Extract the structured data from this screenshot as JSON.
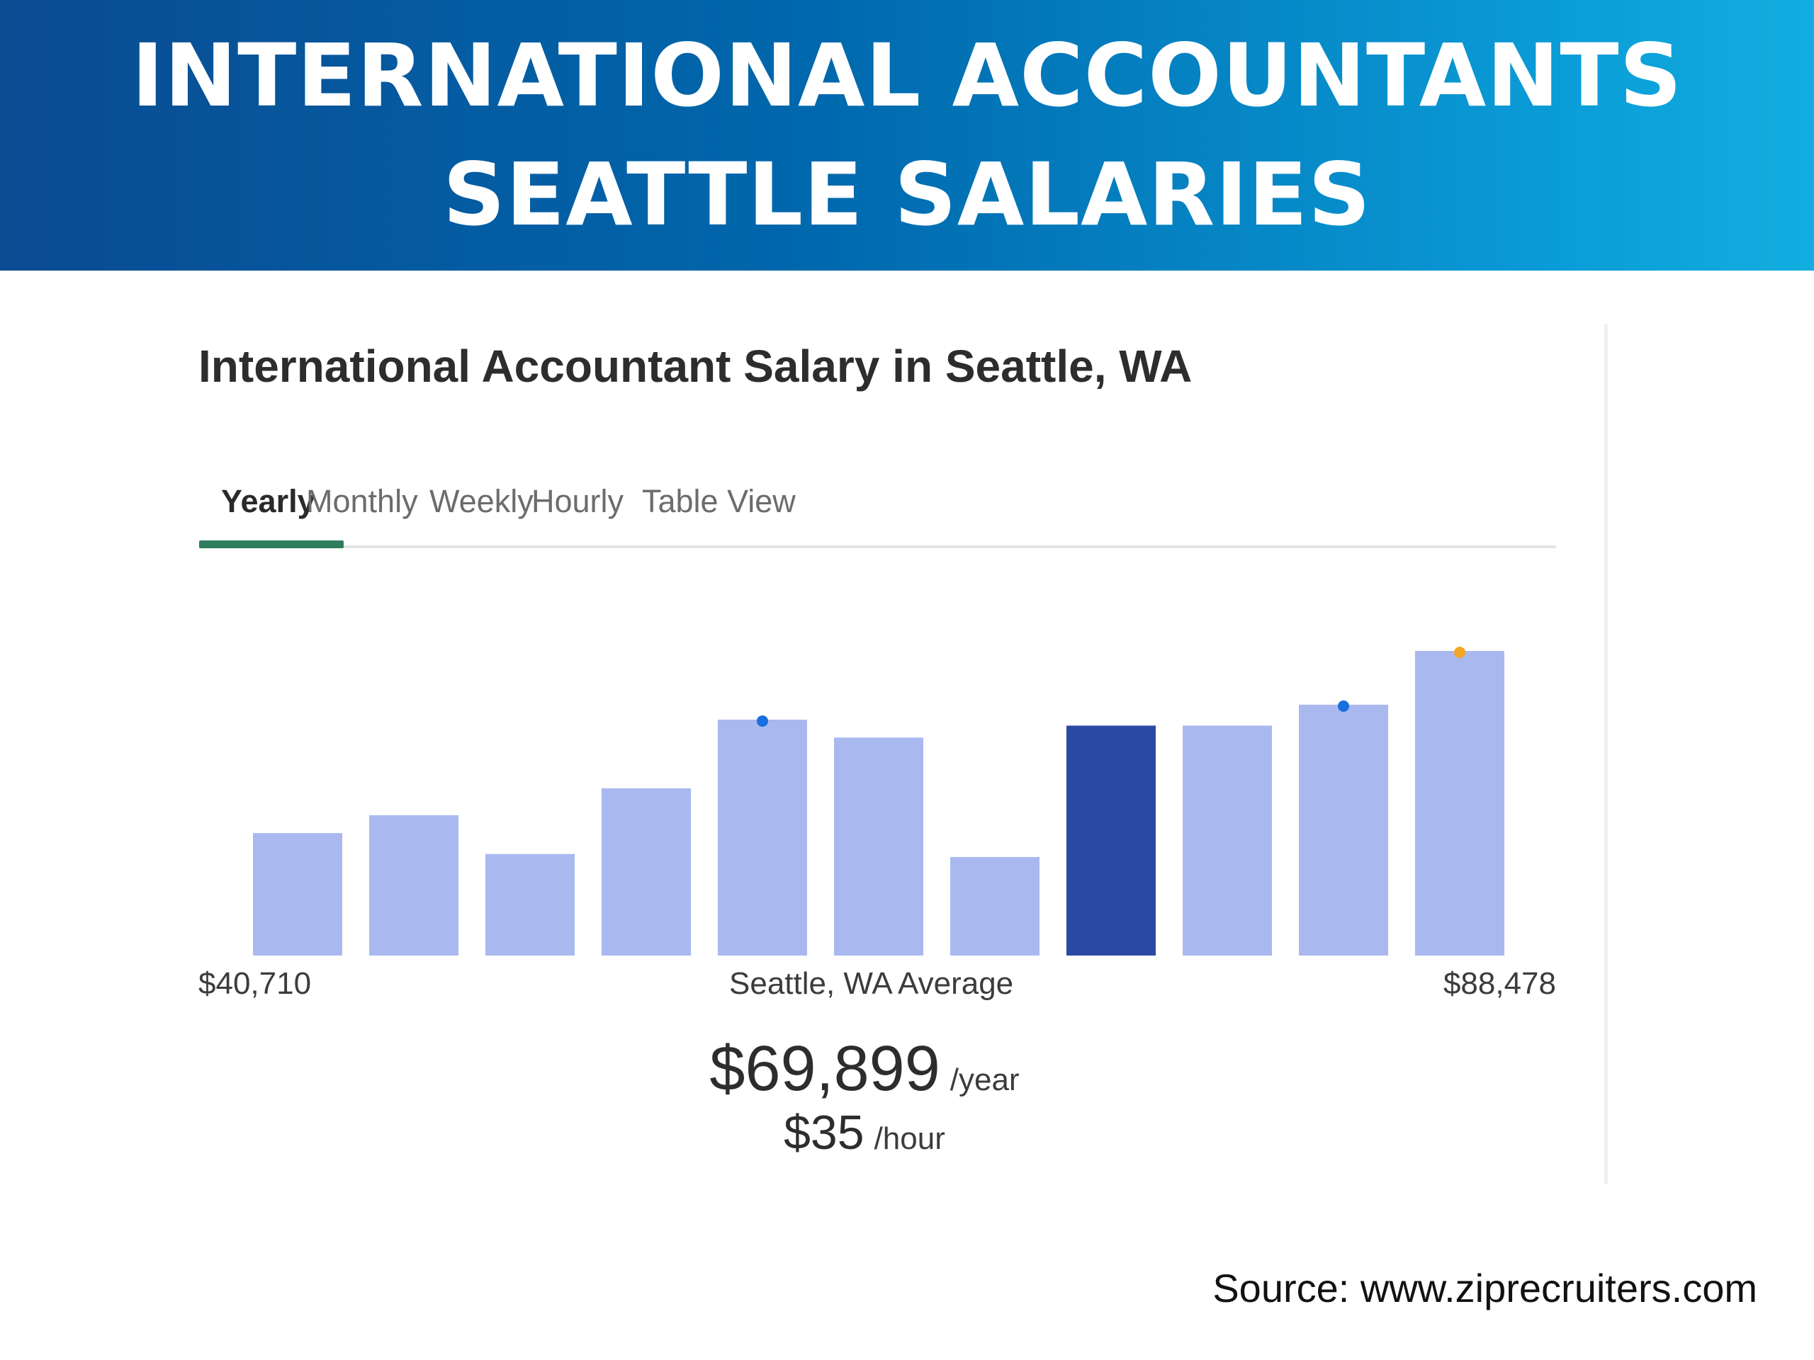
{
  "banner": {
    "line1": "INTERNATIONAL ACCOUNTANTS",
    "line2": "SEATTLE SALARIES"
  },
  "card": {
    "title": "International Accountant Salary in Seattle, WA",
    "tabs": [
      {
        "label": "Yearly",
        "active": true
      },
      {
        "label": "Monthly",
        "active": false
      },
      {
        "label": "Weekly",
        "active": false
      },
      {
        "label": "Hourly",
        "active": false
      },
      {
        "label": "Table View",
        "active": false
      }
    ],
    "axis": {
      "min_label": "$40,710",
      "center_label": "Seattle, WA Average",
      "max_label": "$88,478"
    },
    "average": {
      "yearly": "$69,899",
      "yearly_unit": "/year",
      "hourly": "$35",
      "hourly_unit": "/hour"
    }
  },
  "chart_data": {
    "type": "bar",
    "values": [
      41,
      47,
      34,
      56,
      79,
      73,
      33,
      77,
      77,
      84,
      102
    ],
    "highlight_index": 7,
    "markers": [
      {
        "bar_index": 4,
        "color": "#1a6fe0"
      },
      {
        "bar_index": 9,
        "color": "#1a6fe0"
      },
      {
        "bar_index": 10,
        "color": "#f5a623"
      }
    ],
    "ylim": [
      0,
      102
    ],
    "colors": {
      "bar": "#a9b9f0",
      "highlight": "#2b4aa3"
    },
    "grid": false
  },
  "source": "Source: www.ziprecruiters.com"
}
